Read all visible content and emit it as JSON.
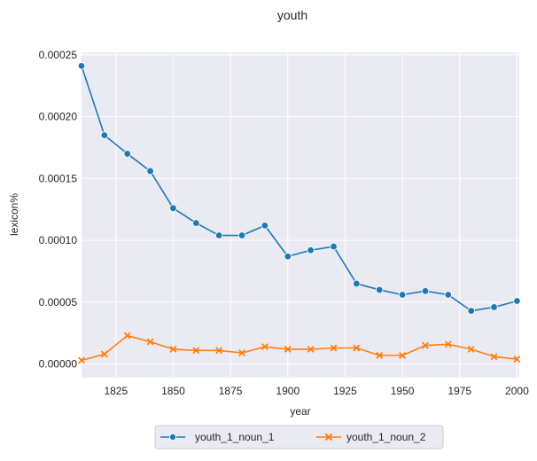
{
  "chart_data": {
    "type": "line",
    "title": "youth",
    "xlabel": "year",
    "ylabel": "lexicon%",
    "xlim": [
      1810,
      2001
    ],
    "ylim": [
      -1.1e-05,
      0.000252
    ],
    "x_ticks": [
      1825,
      1850,
      1875,
      1900,
      1925,
      1950,
      1975,
      2000
    ],
    "y_ticks": [
      0,
      5e-05,
      0.0001,
      0.00015,
      0.0002,
      0.00025
    ],
    "y_tick_labels": [
      "0.00000",
      "0.00005",
      "0.00010",
      "0.00015",
      "0.00020",
      "0.00025"
    ],
    "grid": true,
    "legend_position": "bottom-center",
    "x": [
      1810,
      1820,
      1830,
      1840,
      1850,
      1860,
      1870,
      1880,
      1890,
      1900,
      1910,
      1920,
      1930,
      1940,
      1950,
      1960,
      1970,
      1980,
      1990,
      2000
    ],
    "series": [
      {
        "name": "youth_1_noun_1",
        "color": "#1f77b4",
        "marker": "circle",
        "values": [
          0.000241,
          0.000185,
          0.00017,
          0.000156,
          0.000126,
          0.000114,
          0.000104,
          0.000104,
          0.000112,
          8.7e-05,
          9.2e-05,
          9.5e-05,
          6.5e-05,
          6e-05,
          5.6e-05,
          5.9e-05,
          5.6e-05,
          4.3e-05,
          4.6e-05,
          5.1e-05
        ]
      },
      {
        "name": "youth_1_noun_2",
        "color": "#ff7f0e",
        "marker": "x",
        "values": [
          3e-06,
          8e-06,
          2.3e-05,
          1.8e-05,
          1.2e-05,
          1.1e-05,
          1.1e-05,
          9e-06,
          1.4e-05,
          1.2e-05,
          1.2e-05,
          1.3e-05,
          1.3e-05,
          7e-06,
          7e-06,
          1.5e-05,
          1.6e-05,
          1.2e-05,
          6e-06,
          4e-06
        ]
      }
    ]
  }
}
